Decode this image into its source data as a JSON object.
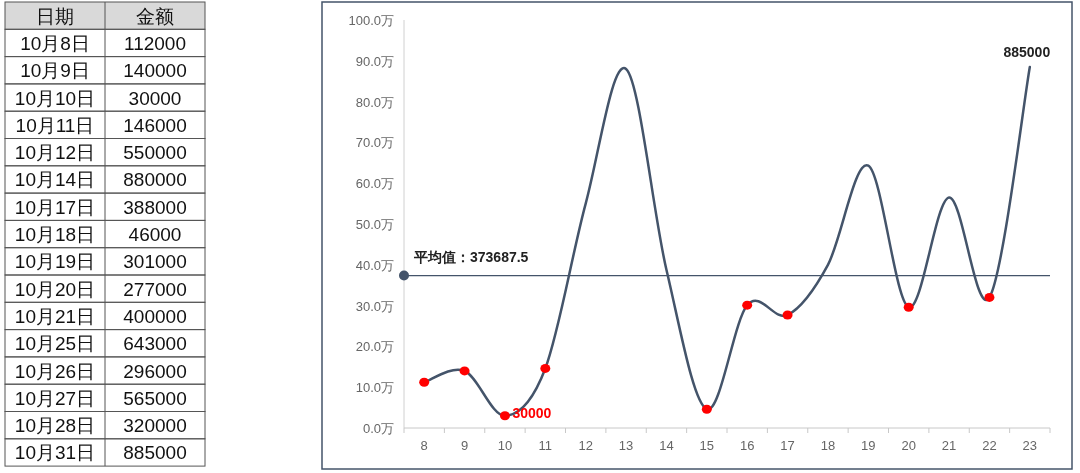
{
  "chart_data": [
    {
      "type": "other",
      "xlabel": "日期",
      "ylabel": "金额",
      "data_labels": true,
      "categories": [
        "10月8日",
        "10月9日",
        "10月10日",
        "10月11日",
        "10月12日",
        "10月14日",
        "10月17日",
        "10月18日",
        "10月19日",
        "10月20日",
        "10月21日",
        "10月25日",
        "10月26日",
        "10月27日",
        "10月28日",
        "10月31日"
      ],
      "values": [
        112000,
        140000,
        30000,
        146000,
        550000,
        880000,
        388000,
        46000,
        301000,
        277000,
        400000,
        643000,
        296000,
        565000,
        320000,
        885000
      ]
    },
    {
      "type": "line",
      "categories": [
        "8",
        "9",
        "10",
        "11",
        "12",
        "13",
        "14",
        "15",
        "16",
        "17",
        "18",
        "19",
        "20",
        "21",
        "22",
        "23"
      ],
      "series": [
        {
          "type": "line",
          "color": "#44546a",
          "values": [
            11.2,
            14.0,
            3.0,
            14.6,
            55.0,
            88.0,
            38.8,
            4.6,
            30.1,
            27.7,
            40.0,
            64.3,
            29.6,
            56.5,
            32.0,
            88.5
          ]
        },
        {
          "type": "scatter",
          "color": "#ff0000",
          "x": [
            "8",
            "9",
            "10",
            "11",
            "15",
            "16",
            "17",
            "20",
            "22"
          ],
          "values": [
            11.2,
            14.0,
            3.0,
            14.6,
            4.6,
            30.1,
            27.7,
            29.6,
            32.0
          ]
        }
      ],
      "ylim": [
        0,
        100
      ],
      "yticks": [
        {
          "value": 0,
          "label": "0.0万"
        },
        {
          "value": 10,
          "label": "10.0万"
        },
        {
          "value": 20,
          "label": "20.0万"
        },
        {
          "value": 30,
          "label": "30.0万"
        },
        {
          "value": 40,
          "label": "40.0万"
        },
        {
          "value": 50,
          "label": "50.0万"
        },
        {
          "value": 60,
          "label": "60.0万"
        },
        {
          "value": 70,
          "label": "70.0万"
        },
        {
          "value": 80,
          "label": "80.0万"
        },
        {
          "value": 90,
          "label": "90.0万"
        },
        {
          "value": 100,
          "label": "100.0万"
        }
      ],
      "ref_lines": [
        {
          "axis": "y",
          "value": 37.36875,
          "label": "平均值：373687.5",
          "color": "#44546a"
        }
      ],
      "annotations": [
        {
          "text": "30000",
          "x": "10",
          "y": 3.0
        },
        {
          "text": "885000",
          "x": "23",
          "y": 88.5
        }
      ]
    }
  ]
}
